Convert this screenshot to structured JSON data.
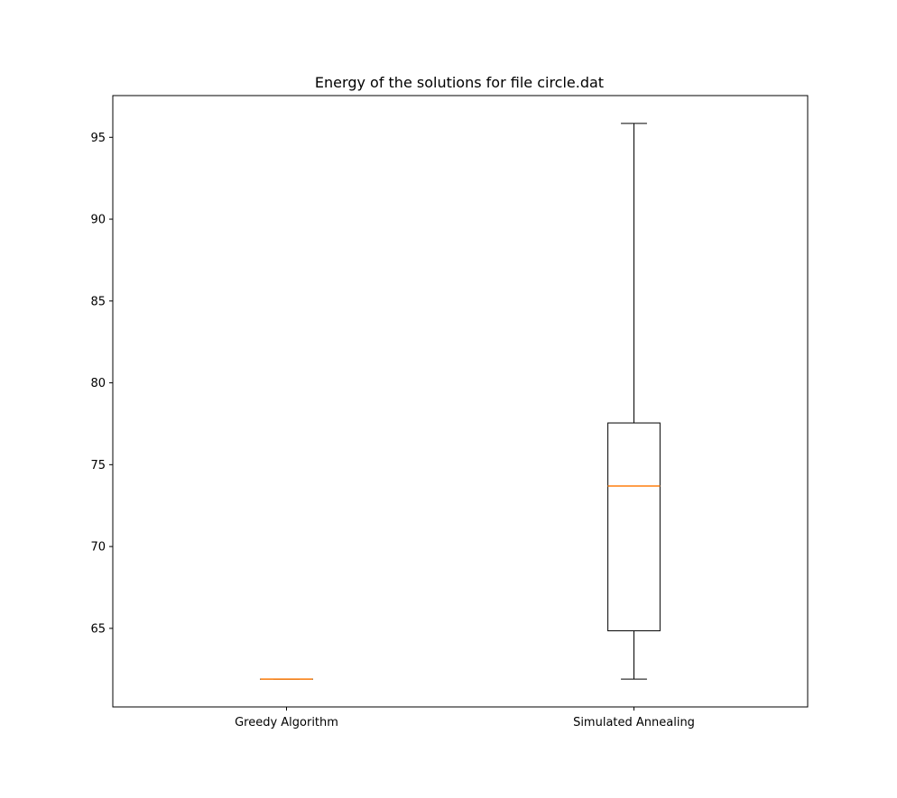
{
  "chart_data": {
    "type": "boxplot",
    "title": "Energy of the solutions for file circle.dat",
    "xlabel": "",
    "ylabel": "",
    "categories": [
      "Greedy Algorithm",
      "Simulated Annealing"
    ],
    "boxes": [
      {
        "category": "Greedy Algorithm",
        "whisker_low": 61.9,
        "q1": 61.9,
        "median": 61.9,
        "q3": 61.9,
        "whisker_high": 61.9
      },
      {
        "category": "Simulated Annealing",
        "whisker_low": 61.9,
        "q1": 64.85,
        "median": 73.7,
        "q3": 77.55,
        "whisker_high": 95.85
      }
    ],
    "yticks": [
      65,
      70,
      75,
      80,
      85,
      90,
      95
    ],
    "ylim": [
      60.2,
      97.55
    ],
    "grid": false,
    "legend": "none",
    "colors": {
      "box": "#000000",
      "median": "#ff7f0e",
      "background": "#ffffff"
    }
  }
}
